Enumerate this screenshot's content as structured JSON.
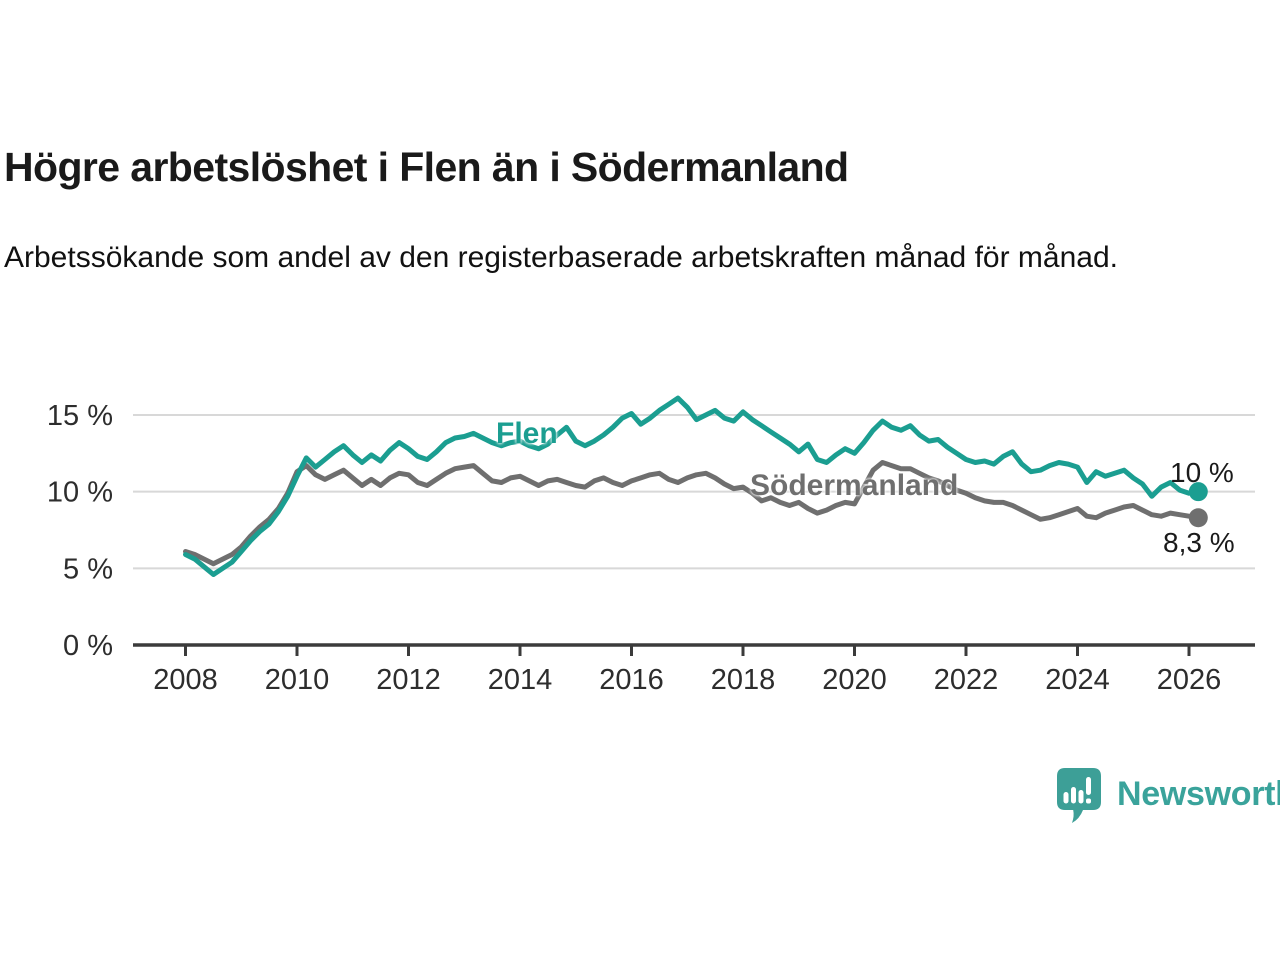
{
  "header": {
    "title": "Högre arbetslöshet i Flen än i Södermanland",
    "subtitle": "Arbetssökande som andel av den registerbaserade arbetskraften månad för månad."
  },
  "footer": {
    "brand": "Newsworthy"
  },
  "colors": {
    "flen_line": "#1b9e91",
    "sodermanland_line": "#6f6f6f",
    "gridline": "#d8d8d8",
    "axis": "#3b3b3b",
    "tick_text": "#2d2d2d",
    "text": "#1a1a1a",
    "logo_bubble": "#3d9f97",
    "logo_text": "#3aa39b",
    "background": "#ffffff"
  },
  "chart_data": {
    "type": "line",
    "title": "Högre arbetslöshet i Flen än i Södermanland",
    "subtitle": "Arbetssökande som andel av den registerbaserade arbetskraften månad för månad.",
    "xlabel": "",
    "ylabel": "",
    "grid": "horizontal",
    "legend_position": "inline-labels",
    "ylim": [
      0,
      16.5
    ],
    "x_start": 2008.0,
    "x_step_years": 0.1666667,
    "y_ticks": [
      {
        "value": 0,
        "label": "0 %"
      },
      {
        "value": 5,
        "label": "5 %"
      },
      {
        "value": 10,
        "label": "10 %"
      },
      {
        "value": 15,
        "label": "15 %"
      }
    ],
    "x_ticks": [
      {
        "value": 2008,
        "label": "2008"
      },
      {
        "value": 2010,
        "label": "2010"
      },
      {
        "value": 2012,
        "label": "2012"
      },
      {
        "value": 2014,
        "label": "2014"
      },
      {
        "value": 2016,
        "label": "2016"
      },
      {
        "value": 2018,
        "label": "2018"
      },
      {
        "value": 2020,
        "label": "2020"
      },
      {
        "value": 2022,
        "label": "2022"
      },
      {
        "value": 2024,
        "label": "2024"
      },
      {
        "value": 2026,
        "label": "2026"
      }
    ],
    "series": [
      {
        "name": "Flen",
        "color": "#1b9e91",
        "end_label": "10 %",
        "end_value": 10.0,
        "values": [
          5.9,
          5.6,
          5.1,
          4.6,
          5.0,
          5.4,
          6.1,
          6.8,
          7.4,
          7.9,
          8.7,
          9.7,
          11.0,
          12.2,
          11.6,
          12.1,
          12.6,
          13.0,
          12.4,
          11.9,
          12.4,
          12.0,
          12.7,
          13.2,
          12.8,
          12.3,
          12.1,
          12.6,
          13.2,
          13.5,
          13.6,
          13.8,
          13.5,
          13.2,
          13.0,
          13.2,
          13.3,
          13.0,
          12.8,
          13.1,
          13.7,
          14.2,
          13.3,
          13.0,
          13.3,
          13.7,
          14.2,
          14.8,
          15.1,
          14.4,
          14.8,
          15.3,
          15.7,
          16.1,
          15.5,
          14.7,
          15.0,
          15.3,
          14.8,
          14.6,
          15.2,
          14.7,
          14.3,
          13.9,
          13.5,
          13.1,
          12.6,
          13.1,
          12.1,
          11.9,
          12.4,
          12.8,
          12.5,
          13.2,
          14.0,
          14.6,
          14.2,
          14.0,
          14.3,
          13.7,
          13.3,
          13.4,
          12.9,
          12.5,
          12.1,
          11.9,
          12.0,
          11.8,
          12.3,
          12.6,
          11.8,
          11.3,
          11.4,
          11.7,
          11.9,
          11.8,
          11.6,
          10.6,
          11.3,
          11.0,
          11.2,
          11.4,
          10.9,
          10.5,
          9.7,
          10.3,
          10.6,
          10.1,
          9.9,
          10.0
        ]
      },
      {
        "name": "Södermanland",
        "color": "#6f6f6f",
        "end_label": "8,3 %",
        "end_value": 8.3,
        "values": [
          6.1,
          5.9,
          5.6,
          5.3,
          5.6,
          5.9,
          6.4,
          7.1,
          7.7,
          8.2,
          8.9,
          9.9,
          11.3,
          11.7,
          11.1,
          10.8,
          11.1,
          11.4,
          10.9,
          10.4,
          10.8,
          10.4,
          10.9,
          11.2,
          11.1,
          10.6,
          10.4,
          10.8,
          11.2,
          11.5,
          11.6,
          11.7,
          11.2,
          10.7,
          10.6,
          10.9,
          11.0,
          10.7,
          10.4,
          10.7,
          10.8,
          10.6,
          10.4,
          10.3,
          10.7,
          10.9,
          10.6,
          10.4,
          10.7,
          10.9,
          11.1,
          11.2,
          10.8,
          10.6,
          10.9,
          11.1,
          11.2,
          10.9,
          10.5,
          10.2,
          10.3,
          9.9,
          9.4,
          9.6,
          9.3,
          9.1,
          9.3,
          8.9,
          8.6,
          8.8,
          9.1,
          9.3,
          9.2,
          10.3,
          11.4,
          11.9,
          11.7,
          11.5,
          11.5,
          11.2,
          10.9,
          10.7,
          10.4,
          10.1,
          9.9,
          9.6,
          9.4,
          9.3,
          9.3,
          9.1,
          8.8,
          8.5,
          8.2,
          8.3,
          8.5,
          8.7,
          8.9,
          8.4,
          8.3,
          8.6,
          8.8,
          9.0,
          9.1,
          8.8,
          8.5,
          8.4,
          8.6,
          8.5,
          8.4,
          8.3
        ]
      }
    ]
  }
}
